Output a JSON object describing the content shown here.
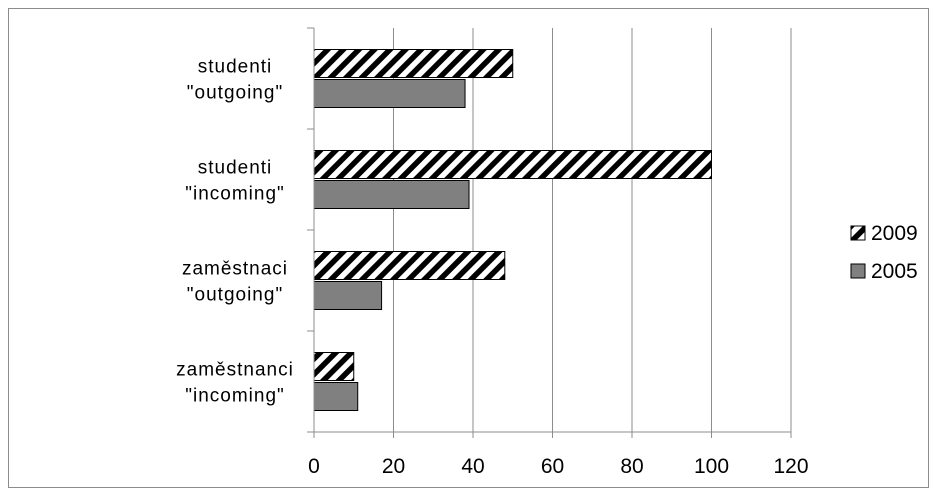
{
  "chart_data": {
    "type": "bar",
    "orientation": "horizontal",
    "categories": [
      [
        "studenti",
        "\"outgoing\""
      ],
      [
        "studenti",
        "\"incoming\""
      ],
      [
        "zaměstnaci",
        "\"outgoing\""
      ],
      [
        "zaměstnanci",
        "\"incoming\""
      ]
    ],
    "series": [
      {
        "name": "2009",
        "values": [
          50,
          100,
          48,
          10
        ],
        "pattern": "diagonal-hatch",
        "color": "#000000"
      },
      {
        "name": "2005",
        "values": [
          38,
          39,
          17,
          11
        ],
        "pattern": "solid",
        "color": "#808080"
      }
    ],
    "xlim": [
      0,
      120
    ],
    "xticks": [
      "0",
      "20",
      "40",
      "60",
      "80",
      "100",
      "120"
    ],
    "grid": true,
    "legend_position": "right"
  }
}
